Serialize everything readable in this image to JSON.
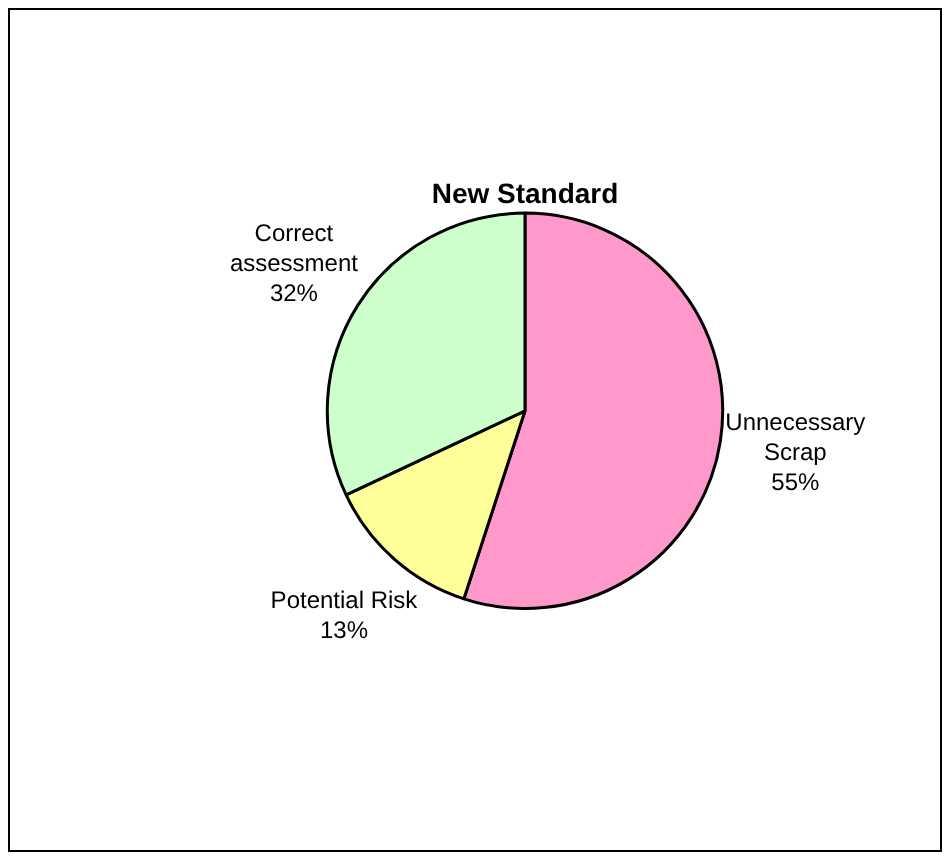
{
  "chart_data": {
    "type": "pie",
    "title": "New Standard",
    "categories": [
      "Unnecessary Scrap",
      "Potential Risk",
      "Correct assessment"
    ],
    "values": [
      55,
      13,
      32
    ],
    "colors": [
      "#ff99cc",
      "#ffff99",
      "#ccffcc"
    ],
    "value_labels": [
      "55%",
      "13%",
      "32%"
    ],
    "legend": false
  }
}
